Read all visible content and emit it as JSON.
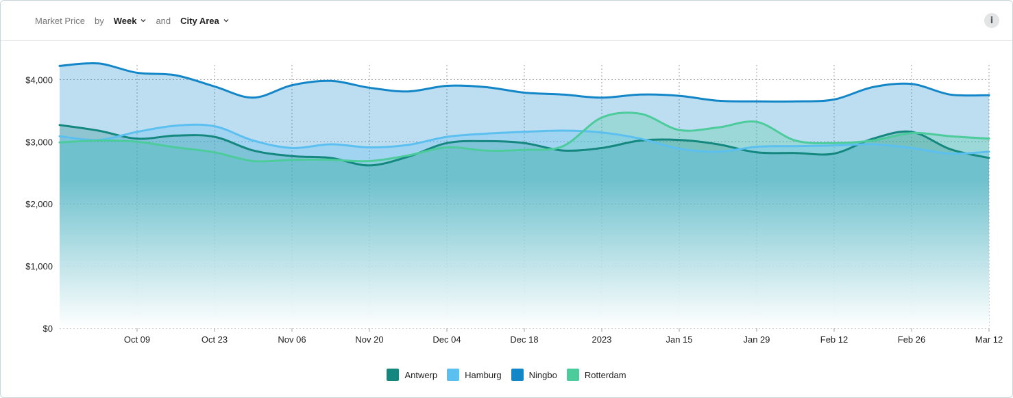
{
  "header": {
    "metric_label": "Market Price",
    "by_label": "by",
    "group1": "Week",
    "and_label": "and",
    "group2": "City Area",
    "info_icon": "info-icon"
  },
  "chart_data": {
    "type": "area",
    "x": [
      "2022-09-25",
      "2022-10-02",
      "2022-10-09",
      "2022-10-16",
      "2022-10-23",
      "2022-10-30",
      "2022-11-06",
      "2022-11-13",
      "2022-11-20",
      "2022-11-27",
      "2022-12-04",
      "2022-12-11",
      "2022-12-18",
      "2022-12-25",
      "2023-01-01",
      "2023-01-08",
      "2023-01-15",
      "2023-01-22",
      "2023-01-29",
      "2023-02-05",
      "2023-02-12",
      "2023-02-19",
      "2023-02-26",
      "2023-03-05",
      "2023-03-12"
    ],
    "x_ticks": [
      "Oct 09",
      "Oct 23",
      "Nov 06",
      "Nov 20",
      "Dec 04",
      "Dec 18",
      "2023",
      "Jan 15",
      "Jan 29",
      "Feb 12",
      "Feb 26",
      "Mar 12"
    ],
    "y_ticks": [
      "$0",
      "$1,000",
      "$2,000",
      "$3,000",
      "$4,000"
    ],
    "ylim": [
      0,
      4500
    ],
    "grid": true,
    "legend_position": "bottom",
    "series": [
      {
        "name": "Antwerp",
        "color": "#14877e",
        "values": [
          3270,
          3180,
          3050,
          3100,
          3080,
          2860,
          2770,
          2740,
          2620,
          2760,
          2980,
          3010,
          2980,
          2860,
          2900,
          3020,
          3030,
          2960,
          2830,
          2820,
          2810,
          3050,
          3160,
          2880,
          2740
        ]
      },
      {
        "name": "Hamburg",
        "color": "#5bc0f0",
        "values": [
          3090,
          3030,
          3160,
          3260,
          3250,
          3020,
          2900,
          2960,
          2910,
          2950,
          3080,
          3130,
          3160,
          3180,
          3150,
          3050,
          2890,
          2840,
          2920,
          2930,
          2940,
          2960,
          2900,
          2810,
          2840
        ]
      },
      {
        "name": "Ningbo",
        "color": "#1386c8",
        "values": [
          4220,
          4260,
          4110,
          4070,
          3890,
          3710,
          3910,
          3980,
          3870,
          3810,
          3900,
          3880,
          3790,
          3760,
          3710,
          3760,
          3740,
          3660,
          3650,
          3650,
          3680,
          3880,
          3930,
          3760,
          3750
        ]
      },
      {
        "name": "Rotterdam",
        "color": "#4ccb9b",
        "values": [
          2990,
          3020,
          3000,
          2910,
          2830,
          2690,
          2710,
          2710,
          2690,
          2780,
          2910,
          2860,
          2870,
          2930,
          3390,
          3450,
          3190,
          3230,
          3320,
          3020,
          2980,
          3020,
          3140,
          3090,
          3050
        ]
      }
    ]
  }
}
